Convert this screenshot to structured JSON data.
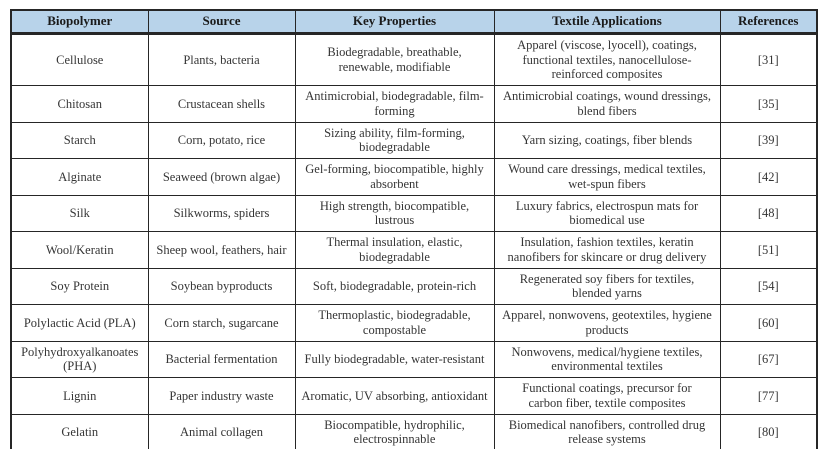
{
  "colors": {
    "header_bg": "#b8d3ea",
    "border": "#262626",
    "header_text": "#1a1a1a",
    "body_text": "#353535",
    "page_bg": "#ffffff"
  },
  "table": {
    "headers": [
      "Biopolymer",
      "Source",
      "Key Properties",
      "Textile Applications",
      "References"
    ],
    "rows": [
      {
        "biopolymer": "Cellulose",
        "source": "Plants, bacteria",
        "properties": "Biodegradable, breathable,\nrenewable, modifiable",
        "applications": "Apparel (viscose, lyocell), coatings,\nfunctional textiles, nanocellulose-\nreinforced composites",
        "reference": "[31]"
      },
      {
        "biopolymer": "Chitosan",
        "source": "Crustacean shells",
        "properties": "Antimicrobial, biodegradable, film-\nforming",
        "applications": "Antimicrobial coatings, wound dressings,\nblend fibers",
        "reference": "[35]"
      },
      {
        "biopolymer": "Starch",
        "source": "Corn, potato, rice",
        "properties": "Sizing ability, film-forming,\nbiodegradable",
        "applications": "Yarn sizing, coatings, fiber blends",
        "reference": "[39]"
      },
      {
        "biopolymer": "Alginate",
        "source": "Seaweed (brown algae)",
        "properties": "Gel-forming, biocompatible, highly\nabsorbent",
        "applications": "Wound care dressings, medical textiles,\nwet-spun fibers",
        "reference": "[42]"
      },
      {
        "biopolymer": "Silk",
        "source": "Silkworms, spiders",
        "properties": "High strength, biocompatible,\nlustrous",
        "applications": "Luxury fabrics, electrospun mats for\nbiomedical use",
        "reference": "[48]"
      },
      {
        "biopolymer": "Wool/Keratin",
        "source": "Sheep wool, feathers, hair",
        "properties": "Thermal insulation, elastic,\nbiodegradable",
        "applications": "Insulation, fashion textiles, keratin\nnanofibers for skincare or drug delivery",
        "reference": "[51]"
      },
      {
        "biopolymer": "Soy Protein",
        "source": "Soybean byproducts",
        "properties": "Soft, biodegradable, protein-rich",
        "applications": "Regenerated soy fibers for textiles,\nblended yarns",
        "reference": "[54]"
      },
      {
        "biopolymer": "Polylactic Acid (PLA)",
        "source": "Corn starch, sugarcane",
        "properties": "Thermoplastic, biodegradable,\ncompostable",
        "applications": "Apparel, nonwovens, geotextiles, hygiene\nproducts",
        "reference": "[60]"
      },
      {
        "biopolymer": "Polyhydroxyalkanoates\n(PHA)",
        "source": "Bacterial fermentation",
        "properties": "Fully biodegradable, water-resistant",
        "applications": "Nonwovens, medical/hygiene textiles,\nenvironmental textiles",
        "reference": "[67]"
      },
      {
        "biopolymer": "Lignin",
        "source": "Paper industry waste",
        "properties": "Aromatic, UV absorbing, antioxidant",
        "applications": "Functional coatings, precursor for\ncarbon fiber, textile composites",
        "reference": "[77]"
      },
      {
        "biopolymer": "Gelatin",
        "source": "Animal collagen",
        "properties": "Biocompatible, hydrophilic,\nelectrospinnable",
        "applications": "Biomedical nanofibers, controlled drug\nrelease systems",
        "reference": "[80]"
      }
    ]
  }
}
